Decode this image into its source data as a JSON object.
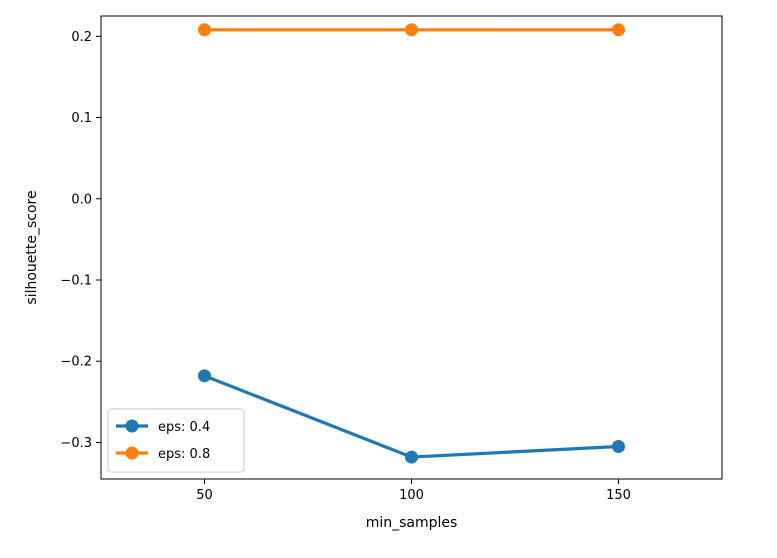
{
  "chart_data": {
    "type": "line",
    "title": "",
    "xlabel": "min_samples",
    "ylabel": "silhouette_score",
    "x": [
      50,
      100,
      150
    ],
    "xlim": [
      25,
      175
    ],
    "ylim": [
      -0.345,
      0.225
    ],
    "xticks": [
      50,
      100,
      150
    ],
    "yticks": [
      0.2,
      0.1,
      0.0,
      -0.1,
      -0.2,
      -0.3
    ],
    "ytick_labels": [
      "0.2",
      "0.1",
      "0.0",
      "−0.1",
      "−0.2",
      "−0.3"
    ],
    "grid": false,
    "legend_position": "lower-left",
    "series": [
      {
        "name": "eps: 0.4",
        "color": "#1f77b4",
        "values": [
          -0.218,
          -0.318,
          -0.305
        ]
      },
      {
        "name": "eps: 0.8",
        "color": "#ff7f0e",
        "values": [
          0.208,
          0.208,
          0.208
        ]
      }
    ]
  }
}
